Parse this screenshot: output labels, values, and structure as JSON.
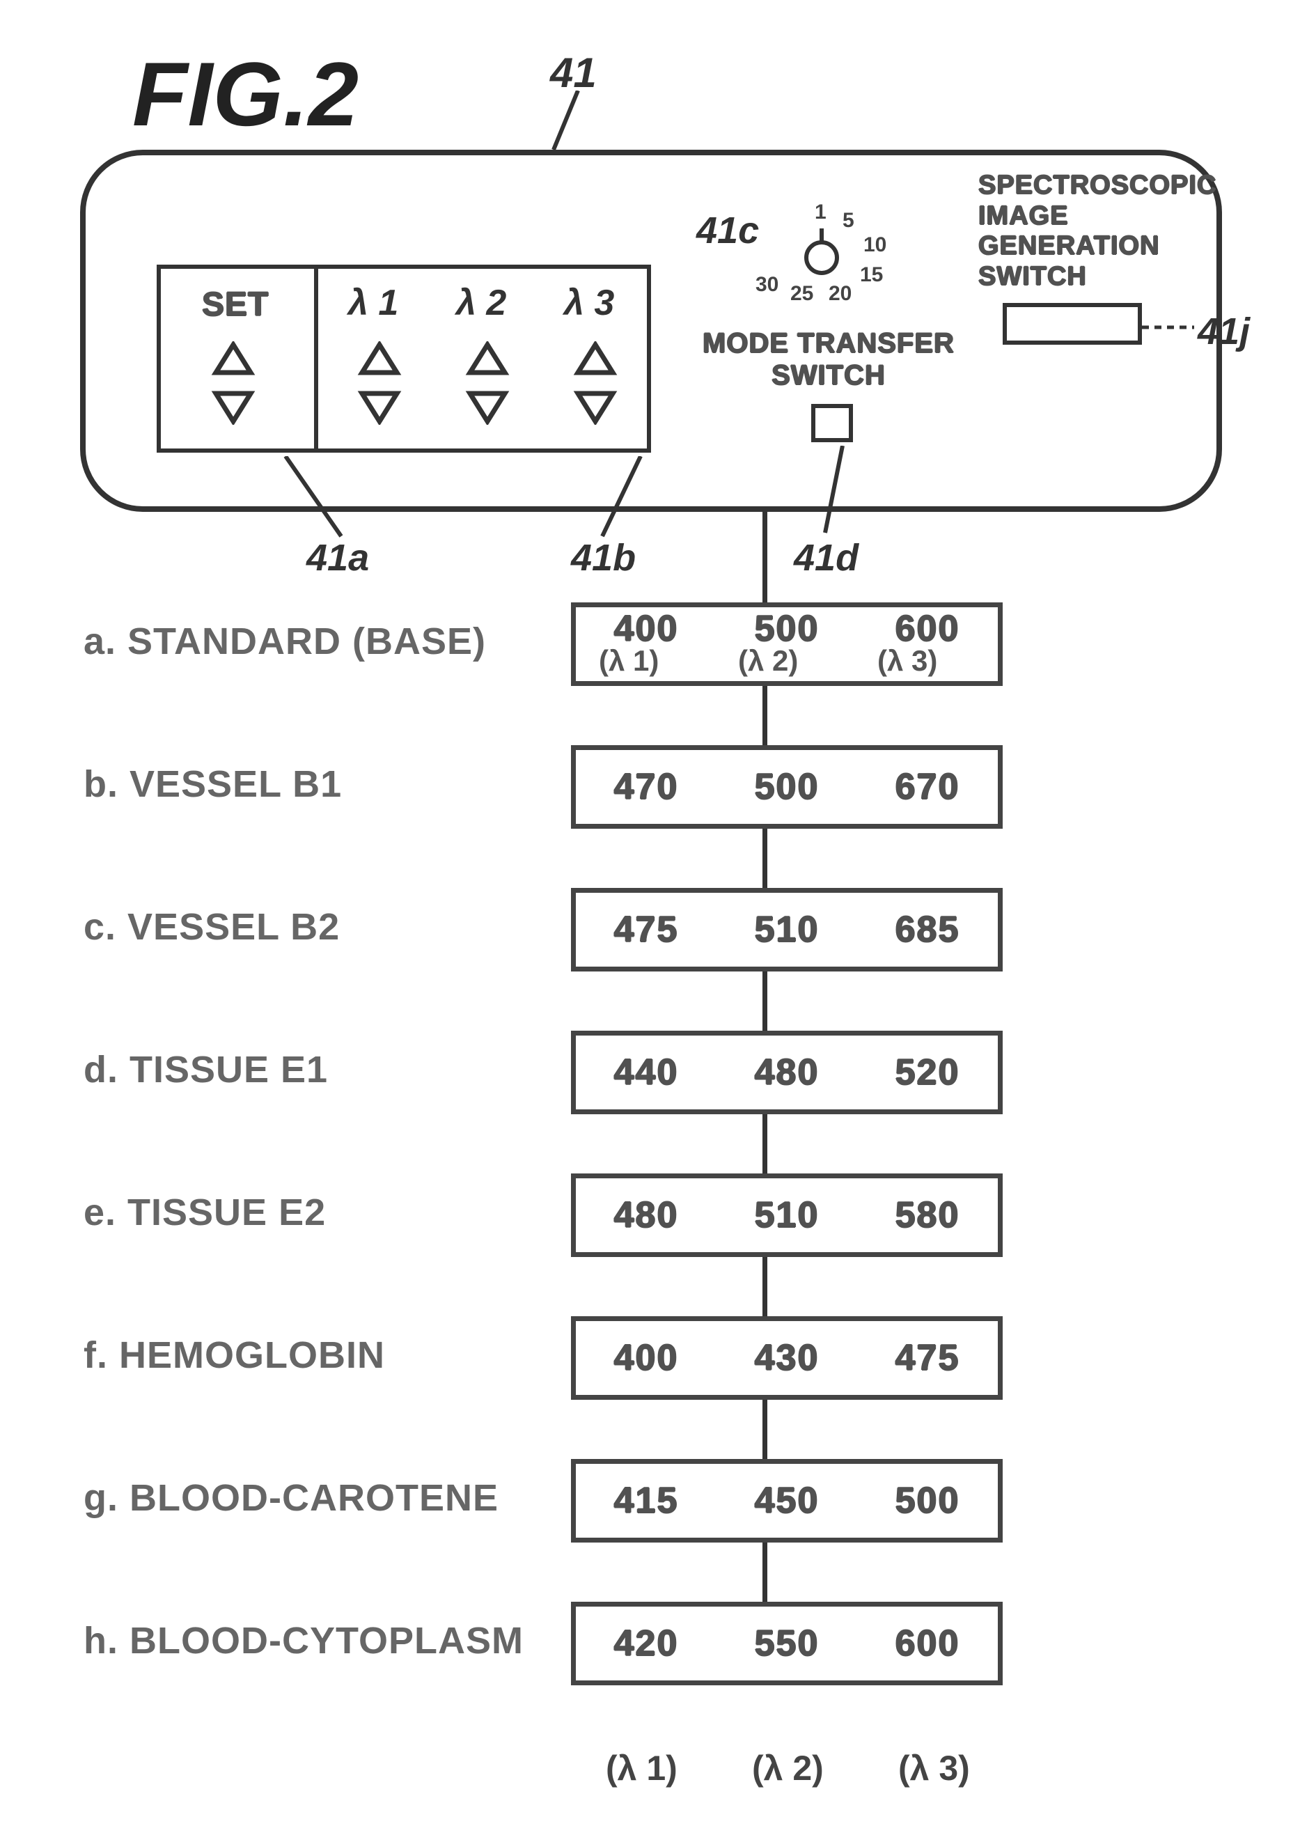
{
  "figure": {
    "title": "FIG.2",
    "title_fontsize": 130,
    "title_color": "#222",
    "ref_top": "41",
    "ref_top_fontsize": 60
  },
  "panel": {
    "border_color": "#333",
    "bg": "#ffffff",
    "set_label": "SET",
    "lambda1": "λ 1",
    "lambda2": "λ 2",
    "lambda3": "λ 3",
    "ref_41a": "41a",
    "ref_41b": "41b",
    "ref_41c": "41c",
    "ref_41d": "41d",
    "ref_41j": "41j",
    "dial_numbers": [
      "1",
      "5",
      "10",
      "15",
      "20",
      "25",
      "30"
    ],
    "mode_transfer_label": "MODE TRANSFER\nSWITCH",
    "spectro_label": "SPECTROSCOPIC\nIMAGE\nGENERATION\nSWITCH",
    "label_fontsize": 48,
    "callout_fontsize": 54,
    "stipple_fontsize": 44,
    "arrow_color": "#333"
  },
  "modes": [
    {
      "key": "a",
      "label": "a. STANDARD (BASE)",
      "v1": "400",
      "v2": "500",
      "v3": "600",
      "sub1": "(λ 1)",
      "sub2": "(λ 2)",
      "sub3": "(λ 3)"
    },
    {
      "key": "b",
      "label": "b. VESSEL B1",
      "v1": "470",
      "v2": "500",
      "v3": "670"
    },
    {
      "key": "c",
      "label": "c. VESSEL B2",
      "v1": "475",
      "v2": "510",
      "v3": "685"
    },
    {
      "key": "d",
      "label": "d. TISSUE E1",
      "v1": "440",
      "v2": "480",
      "v3": "520"
    },
    {
      "key": "e",
      "label": "e. TISSUE E2",
      "v1": "480",
      "v2": "510",
      "v3": "580"
    },
    {
      "key": "f",
      "label": "f. HEMOGLOBIN",
      "v1": "400",
      "v2": "430",
      "v3": "475"
    },
    {
      "key": "g",
      "label": "g. BLOOD-CAROTENE",
      "v1": "415",
      "v2": "450",
      "v3": "500"
    },
    {
      "key": "h",
      "label": "h. BLOOD-CYTOPLASM",
      "v1": "420",
      "v2": "550",
      "v3": "600"
    }
  ],
  "footer": {
    "l1": "(λ 1)",
    "l2": "(λ 2)",
    "l3": "(λ 3)",
    "fontsize": 50
  },
  "style": {
    "mode_label_fontsize": 54,
    "mode_label_color": "#666",
    "mode_val_fontsize": 52,
    "mode_val_color": "#555",
    "box_border": "#444",
    "connector_color": "#333"
  }
}
